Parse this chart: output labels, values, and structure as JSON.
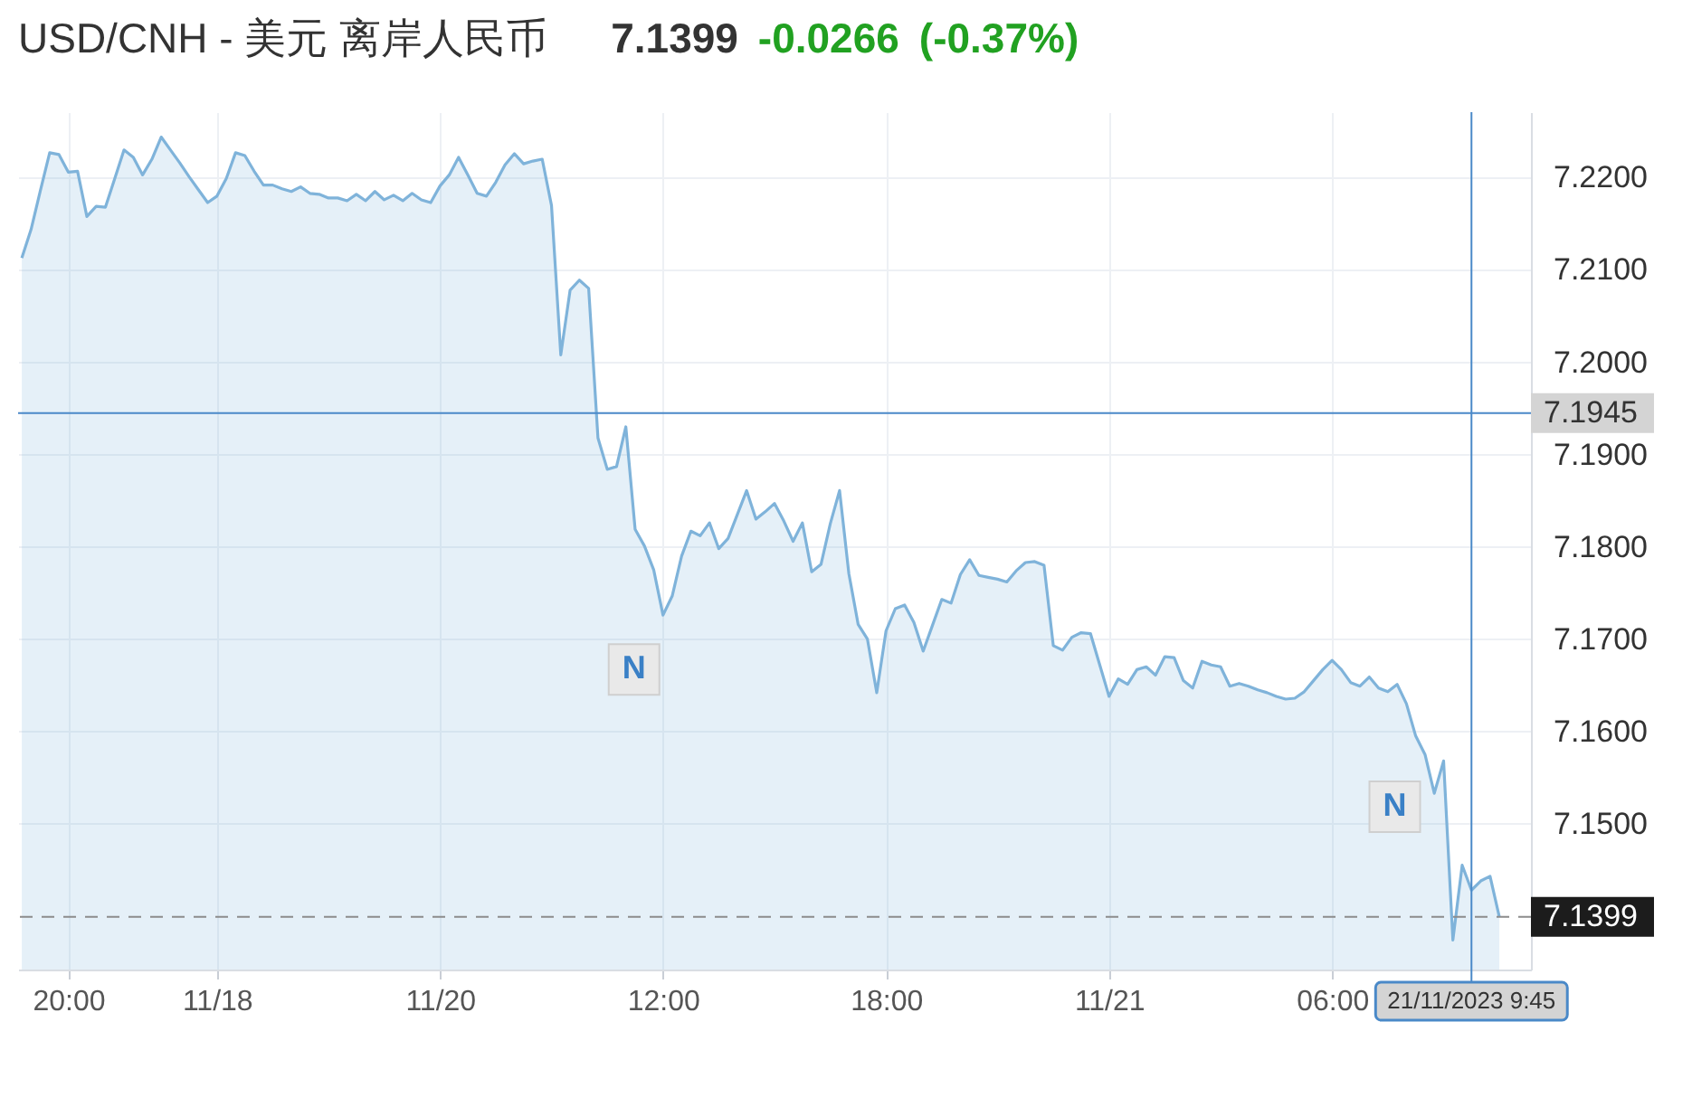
{
  "chart_data": {
    "type": "area",
    "title": "USD/CNH - 美元 离岸人民币",
    "categories": [
      null,
      null,
      null,
      null,
      null,
      "20:00",
      null,
      null,
      null,
      null,
      null,
      null,
      null,
      null,
      null,
      null,
      null,
      null,
      null,
      null,
      null,
      "11/18",
      null,
      null,
      null,
      null,
      null,
      null,
      null,
      null,
      null,
      null,
      null,
      null,
      null,
      null,
      null,
      null,
      null,
      null,
      null,
      null,
      null,
      null,
      null,
      "11/20",
      null,
      null,
      null,
      null,
      null,
      null,
      null,
      null,
      null,
      null,
      null,
      null,
      null,
      null,
      null,
      null,
      null,
      null,
      null,
      null,
      null,
      null,
      null,
      "12:00",
      null,
      null,
      null,
      null,
      null,
      null,
      null,
      null,
      null,
      null,
      null,
      null,
      null,
      null,
      null,
      null,
      null,
      null,
      null,
      null,
      null,
      null,
      null,
      "18:00",
      null,
      null,
      null,
      null,
      null,
      null,
      null,
      null,
      null,
      null,
      null,
      null,
      null,
      null,
      null,
      null,
      null,
      null,
      null,
      null,
      null,
      null,
      null,
      "11/21",
      null,
      null,
      null,
      null,
      null,
      null,
      null,
      null,
      null,
      null,
      null,
      null,
      null,
      null,
      null,
      null,
      null,
      null,
      null,
      null,
      null,
      null,
      null,
      "06:00",
      null,
      null,
      null,
      null,
      null,
      null,
      null,
      null,
      null,
      null,
      null,
      null,
      null,
      null,
      "21/11/2023 9:45",
      null,
      null,
      null
    ],
    "values": [
      7.2113,
      7.2144,
      7.2186,
      7.2227,
      7.2225,
      7.2206,
      7.2207,
      7.2158,
      7.2169,
      7.2168,
      7.2199,
      7.223,
      7.2222,
      7.2203,
      7.222,
      7.2244,
      7.223,
      7.2216,
      7.2201,
      7.2187,
      7.2173,
      7.218,
      7.2199,
      7.2227,
      7.2224,
      7.2207,
      7.2192,
      7.2192,
      7.2188,
      7.2185,
      7.219,
      7.2183,
      7.2182,
      7.2178,
      7.2178,
      7.2175,
      7.2182,
      7.2175,
      7.2185,
      7.2176,
      7.2181,
      7.2175,
      7.2183,
      7.2176,
      7.2173,
      7.2191,
      7.2203,
      7.2222,
      7.2203,
      7.2183,
      7.218,
      7.2195,
      7.2214,
      7.2226,
      7.2215,
      7.2218,
      7.222,
      7.217,
      7.2008,
      7.2078,
      7.2089,
      7.208,
      7.1918,
      7.1884,
      7.1887,
      7.193,
      7.1819,
      7.1801,
      7.1775,
      7.1726,
      7.1747,
      7.179,
      7.1817,
      7.1812,
      7.1826,
      7.1798,
      7.1809,
      7.1835,
      7.1861,
      7.183,
      7.1838,
      7.1847,
      7.1828,
      7.1806,
      7.1826,
      7.1773,
      7.1781,
      7.1825,
      7.1861,
      7.1771,
      7.1716,
      7.17,
      7.1642,
      7.1709,
      7.1733,
      7.1737,
      7.1718,
      7.1687,
      7.1715,
      7.1743,
      7.1739,
      7.177,
      7.1786,
      7.1769,
      7.1767,
      7.1765,
      7.1762,
      7.1774,
      7.1783,
      7.1784,
      7.178,
      7.1693,
      7.1688,
      7.1702,
      7.1707,
      7.1706,
      7.1672,
      7.1638,
      7.1657,
      7.1651,
      7.1667,
      7.167,
      7.1661,
      7.1681,
      7.168,
      7.1655,
      7.1647,
      7.1676,
      7.1672,
      7.167,
      7.1649,
      7.1652,
      7.1649,
      7.1645,
      7.1642,
      7.1638,
      7.1635,
      7.1636,
      7.1643,
      7.1655,
      7.1667,
      7.1677,
      7.1667,
      7.1653,
      7.1649,
      7.1659,
      7.1647,
      7.1643,
      7.1651,
      7.163,
      7.1595,
      7.1575,
      7.1533,
      7.1568,
      7.1374,
      7.1455,
      7.1428,
      7.1438,
      7.1443,
      7.1399
    ],
    "color": "#7fb3da",
    "ylim": [
      7.1342,
      7.2271
    ],
    "yticks": [
      {
        "value": 7.15,
        "label": "7.1500"
      },
      {
        "value": 7.16,
        "label": "7.1600"
      },
      {
        "value": 7.17,
        "label": "7.1700"
      },
      {
        "value": 7.18,
        "label": "7.1800"
      },
      {
        "value": 7.19,
        "label": "7.1900"
      },
      {
        "value": 7.2,
        "label": "7.2000"
      },
      {
        "value": 7.21,
        "label": "7.2100"
      },
      {
        "value": 7.22,
        "label": "7.2200"
      }
    ],
    "grid": true,
    "ref_lines": [
      {
        "axis": "y",
        "value": 7.1945,
        "label": "7.1945",
        "color": "#4a89c8",
        "line_style": "solid"
      },
      {
        "axis": "y",
        "value": 7.1399,
        "label": "7.1399",
        "color": "#8c8c8c",
        "line_style": "dashed"
      },
      {
        "axis": "x",
        "value": "21/11/2023 9:45",
        "color": "#4a89c8",
        "line_style": "solid"
      }
    ],
    "annotations": [
      "7.1399",
      "-0.0266",
      "(-0.37%)",
      {
        "text": "N",
        "x": "12:00",
        "y": 7.1726
      },
      "N"
    ]
  }
}
